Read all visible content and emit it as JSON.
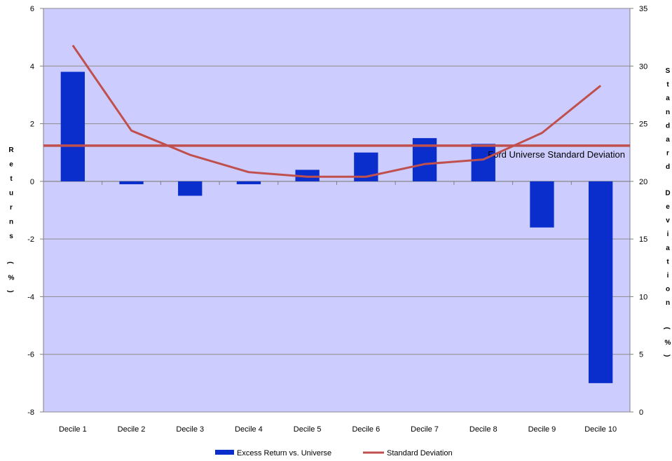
{
  "chart_data": {
    "type": "bar",
    "categories": [
      "Decile 1",
      "Decile 2",
      "Decile 3",
      "Decile 4",
      "Decile 5",
      "Decile 6",
      "Decile 7",
      "Decile 8",
      "Decile 9",
      "Decile 10"
    ],
    "series": [
      {
        "name": "Excess Return vs. Universe",
        "type": "bar",
        "axis": "left",
        "values": [
          3.8,
          -0.1,
          -0.5,
          -0.1,
          0.4,
          1.0,
          1.5,
          1.3,
          -1.6,
          -7.0
        ]
      },
      {
        "name": "Standard Deviation",
        "type": "line",
        "axis": "right",
        "values": [
          31.8,
          24.4,
          22.3,
          20.8,
          20.4,
          20.4,
          21.5,
          21.9,
          24.2,
          28.3
        ]
      }
    ],
    "reference_line": {
      "label": "Ford Universe Standard Deviation",
      "value": 23.1,
      "axis": "right"
    },
    "ylabel": "Returns (%)",
    "y2label": "Standard Deviation (%)",
    "ylim": [
      -8,
      6
    ],
    "y2lim": [
      0,
      35
    ],
    "yticks": [
      "6",
      "4",
      "2",
      "0",
      "-2",
      "-4",
      "-6",
      "-8"
    ],
    "y2ticks": [
      "35",
      "30",
      "25",
      "20",
      "15",
      "10",
      "5",
      "0"
    ],
    "grid": true,
    "legend_position": "bottom",
    "colors": {
      "bars": "#0a2ecc",
      "line": "#c0504d",
      "plot_bg": "#ccccff",
      "gridline": "#8c8c8c"
    }
  }
}
